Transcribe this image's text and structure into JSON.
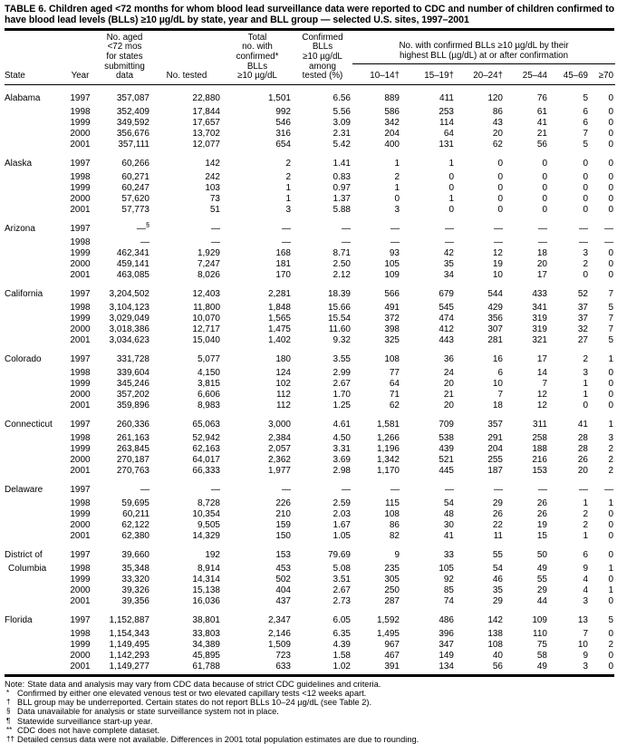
{
  "title": "TABLE 6. Children aged <72 months for whom blood lead surveillance data were reported to CDC and number of children confirmed to have blood lead levels (BLLs) ≥10 µg/dL by state, year and BLL group — selected U.S. sites, 1997–2001",
  "table": {
    "headers": {
      "state": "State",
      "year": "Year",
      "pop": "No. aged\n<72 mos\nfor states\nsubmitting\ndata",
      "tested": "No. tested",
      "total": "Total\nno. with\nconfirmed*\nBLLs\n≥10 µg/dL",
      "pct": "Confirmed\nBLLs\n≥10 µg/dL\namong\ntested (%)",
      "group_span": "No. with confirmed BLLs ≥10 µg/dL by their\nhighest BLL (µg/dL) at or after confirmation",
      "groups": [
        "10–14†",
        "15–19†",
        "20–24†",
        "25–44",
        "45–69",
        "≥70"
      ]
    },
    "states": [
      {
        "name": "Alabama",
        "rows": [
          {
            "year": "1997",
            "v": [
              "357,087",
              "22,880",
              "1,501",
              "6.56",
              "889",
              "411",
              "120",
              "76",
              "5",
              "0"
            ]
          },
          {
            "year": "1998",
            "v": [
              "352,409",
              "17,844",
              "992",
              "5.56",
              "586",
              "253",
              "86",
              "61",
              "6",
              "0"
            ]
          },
          {
            "year": "1999",
            "v": [
              "349,592",
              "17,657",
              "546",
              "3.09",
              "342",
              "114",
              "43",
              "41",
              "6",
              "0"
            ]
          },
          {
            "year": "2000",
            "v": [
              "356,676",
              "13,702",
              "316",
              "2.31",
              "204",
              "64",
              "20",
              "21",
              "7",
              "0"
            ]
          },
          {
            "year": "2001",
            "v": [
              "357,111",
              "12,077",
              "654",
              "5.42",
              "400",
              "131",
              "62",
              "56",
              "5",
              "0"
            ]
          }
        ]
      },
      {
        "name": "Alaska",
        "rows": [
          {
            "year": "1997",
            "v": [
              "60,266",
              "142",
              "2",
              "1.41",
              "1",
              "1",
              "0",
              "0",
              "0",
              "0"
            ]
          },
          {
            "year": "1998",
            "v": [
              "60,271",
              "242",
              "2",
              "0.83",
              "2",
              "0",
              "0",
              "0",
              "0",
              "0"
            ]
          },
          {
            "year": "1999",
            "v": [
              "60,247",
              "103",
              "1",
              "0.97",
              "1",
              "0",
              "0",
              "0",
              "0",
              "0"
            ]
          },
          {
            "year": "2000",
            "v": [
              "57,620",
              "73",
              "1",
              "1.37",
              "0",
              "1",
              "0",
              "0",
              "0",
              "0"
            ]
          },
          {
            "year": "2001",
            "v": [
              "57,773",
              "51",
              "3",
              "5.88",
              "3",
              "0",
              "0",
              "0",
              "0",
              "0"
            ]
          }
        ]
      },
      {
        "name": "Arizona",
        "rows": [
          {
            "year": "1997",
            "v": [
              "—§",
              "—",
              "—",
              "—",
              "—",
              "—",
              "—",
              "—",
              "—",
              "—"
            ]
          },
          {
            "year": "1998",
            "v": [
              "—",
              "—",
              "—",
              "—",
              "—",
              "—",
              "—",
              "—",
              "—",
              "—"
            ]
          },
          {
            "year": "1999",
            "v": [
              "462,341",
              "1,929",
              "168",
              "8.71",
              "93",
              "42",
              "12",
              "18",
              "3",
              "0"
            ]
          },
          {
            "year": "2000",
            "v": [
              "459,141",
              "7,247",
              "181",
              "2.50",
              "105",
              "35",
              "19",
              "20",
              "2",
              "0"
            ]
          },
          {
            "year": "2001",
            "v": [
              "463,085",
              "8,026",
              "170",
              "2.12",
              "109",
              "34",
              "10",
              "17",
              "0",
              "0"
            ]
          }
        ]
      },
      {
        "name": "California",
        "rows": [
          {
            "year": "1997",
            "v": [
              "3,204,502",
              "12,403",
              "2,281",
              "18.39",
              "566",
              "679",
              "544",
              "433",
              "52",
              "7"
            ]
          },
          {
            "year": "1998",
            "v": [
              "3,104,123",
              "11,800",
              "1,848",
              "15.66",
              "491",
              "545",
              "429",
              "341",
              "37",
              "5"
            ]
          },
          {
            "year": "1999",
            "v": [
              "3,029,049",
              "10,070",
              "1,565",
              "15.54",
              "372",
              "474",
              "356",
              "319",
              "37",
              "7"
            ]
          },
          {
            "year": "2000",
            "v": [
              "3,018,386",
              "12,717",
              "1,475",
              "11.60",
              "398",
              "412",
              "307",
              "319",
              "32",
              "7"
            ]
          },
          {
            "year": "2001",
            "v": [
              "3,034,623",
              "15,040",
              "1,402",
              "9.32",
              "325",
              "443",
              "281",
              "321",
              "27",
              "5"
            ]
          }
        ]
      },
      {
        "name": "Colorado",
        "rows": [
          {
            "year": "1997",
            "v": [
              "331,728",
              "5,077",
              "180",
              "3.55",
              "108",
              "36",
              "16",
              "17",
              "2",
              "1"
            ]
          },
          {
            "year": "1998",
            "v": [
              "339,604",
              "4,150",
              "124",
              "2.99",
              "77",
              "24",
              "6",
              "14",
              "3",
              "0"
            ]
          },
          {
            "year": "1999",
            "v": [
              "345,246",
              "3,815",
              "102",
              "2.67",
              "64",
              "20",
              "10",
              "7",
              "1",
              "0"
            ]
          },
          {
            "year": "2000",
            "v": [
              "357,202",
              "6,606",
              "112",
              "1.70",
              "71",
              "21",
              "7",
              "12",
              "1",
              "0"
            ]
          },
          {
            "year": "2001",
            "v": [
              "359,896",
              "8,983",
              "112",
              "1.25",
              "62",
              "20",
              "18",
              "12",
              "0",
              "0"
            ]
          }
        ]
      },
      {
        "name": "Connecticut",
        "rows": [
          {
            "year": "1997",
            "v": [
              "260,336",
              "65,063",
              "3,000",
              "4.61",
              "1,581",
              "709",
              "357",
              "311",
              "41",
              "1"
            ]
          },
          {
            "year": "1998",
            "v": [
              "261,163",
              "52,942",
              "2,384",
              "4.50",
              "1,266",
              "538",
              "291",
              "258",
              "28",
              "3"
            ]
          },
          {
            "year": "1999",
            "v": [
              "263,845",
              "62,163",
              "2,057",
              "3.31",
              "1,196",
              "439",
              "204",
              "188",
              "28",
              "2"
            ]
          },
          {
            "year": "2000",
            "v": [
              "270,187",
              "64,017",
              "2,362",
              "3.69",
              "1,342",
              "521",
              "255",
              "216",
              "26",
              "2"
            ]
          },
          {
            "year": "2001",
            "v": [
              "270,763",
              "66,333",
              "1,977",
              "2.98",
              "1,170",
              "445",
              "187",
              "153",
              "20",
              "2"
            ]
          }
        ]
      },
      {
        "name": "Delaware",
        "rows": [
          {
            "year": "1997",
            "v": [
              "—",
              "—",
              "—",
              "—",
              "—",
              "—",
              "—",
              "—",
              "—",
              "—"
            ]
          },
          {
            "year": "1998",
            "v": [
              "59,695",
              "8,728",
              "226",
              "2.59",
              "115",
              "54",
              "29",
              "26",
              "1",
              "1"
            ]
          },
          {
            "year": "1999",
            "v": [
              "60,211",
              "10,354",
              "210",
              "2.03",
              "108",
              "48",
              "26",
              "26",
              "2",
              "0"
            ]
          },
          {
            "year": "2000",
            "v": [
              "62,122",
              "9,505",
              "159",
              "1.67",
              "86",
              "30",
              "22",
              "19",
              "2",
              "0"
            ]
          },
          {
            "year": "2001",
            "v": [
              "62,380",
              "14,329",
              "150",
              "1.05",
              "82",
              "41",
              "11",
              "15",
              "1",
              "0"
            ]
          }
        ]
      },
      {
        "name": "District of",
        "name2": "Columbia",
        "rows": [
          {
            "year": "1997",
            "v": [
              "39,660",
              "192",
              "153",
              "79.69",
              "9",
              "33",
              "55",
              "50",
              "6",
              "0"
            ]
          },
          {
            "year": "1998",
            "v": [
              "35,348",
              "8,914",
              "453",
              "5.08",
              "235",
              "105",
              "54",
              "49",
              "9",
              "1"
            ]
          },
          {
            "year": "1999",
            "v": [
              "33,320",
              "14,314",
              "502",
              "3.51",
              "305",
              "92",
              "46",
              "55",
              "4",
              "0"
            ]
          },
          {
            "year": "2000",
            "v": [
              "39,326",
              "15,138",
              "404",
              "2.67",
              "250",
              "85",
              "35",
              "29",
              "4",
              "1"
            ]
          },
          {
            "year": "2001",
            "v": [
              "39,356",
              "16,036",
              "437",
              "2.73",
              "287",
              "74",
              "29",
              "44",
              "3",
              "0"
            ]
          }
        ]
      },
      {
        "name": "Florida",
        "rows": [
          {
            "year": "1997",
            "v": [
              "1,152,887",
              "38,801",
              "2,347",
              "6.05",
              "1,592",
              "486",
              "142",
              "109",
              "13",
              "5"
            ]
          },
          {
            "year": "1998",
            "v": [
              "1,154,343",
              "33,803",
              "2,146",
              "6.35",
              "1,495",
              "396",
              "138",
              "110",
              "7",
              "0"
            ]
          },
          {
            "year": "1999",
            "v": [
              "1,149,495",
              "34,389",
              "1,509",
              "4.39",
              "967",
              "347",
              "108",
              "75",
              "10",
              "2"
            ]
          },
          {
            "year": "2000",
            "v": [
              "1,142,293",
              "45,895",
              "723",
              "1.58",
              "467",
              "149",
              "40",
              "58",
              "9",
              "0"
            ]
          },
          {
            "year": "2001",
            "v": [
              "1,149,277",
              "61,788",
              "633",
              "1.02",
              "391",
              "134",
              "56",
              "49",
              "3",
              "0"
            ]
          }
        ]
      }
    ]
  },
  "footnotes": [
    {
      "marker": "Note:",
      "text": "State data and analysis may vary from CDC data because of strict CDC guidelines and criteria."
    },
    {
      "marker": "*",
      "text": "Confirmed by either one elevated venous test or two elevated capillary tests <12 weeks apart."
    },
    {
      "marker": "†",
      "text": "BLL group may be underreported. Certain states do not report BLLs 10–24 µg/dL (see Table 2)."
    },
    {
      "marker": "§",
      "text": "Data unavailable for analysis or state surveillance system not in place."
    },
    {
      "marker": "¶",
      "text": "Statewide surveillance start-up year."
    },
    {
      "marker": "**",
      "text": "CDC does not have complete dataset."
    },
    {
      "marker": "††",
      "text": "Detailed census data were not available. Differences in 2001 total population estimates are due to rounding."
    }
  ]
}
